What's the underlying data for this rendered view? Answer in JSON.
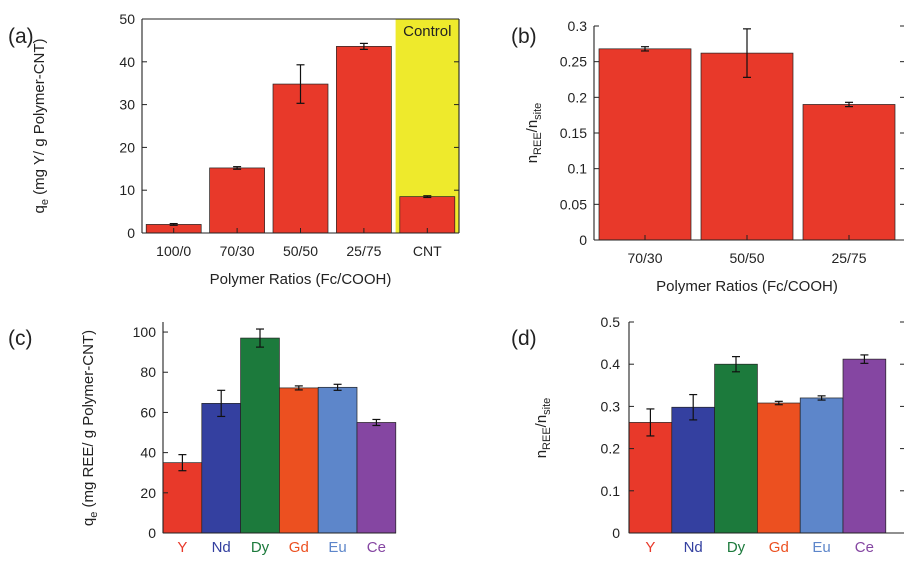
{
  "chart_data": [
    {
      "panel": "(a)",
      "type": "bar",
      "categories": [
        "100/0",
        "70/30",
        "50/50",
        "25/75",
        "CNT"
      ],
      "values": [
        2,
        15.2,
        34.8,
        43.6,
        8.5
      ],
      "errors": [
        0.2,
        0.3,
        4.5,
        0.7,
        0.2
      ],
      "xlabel": "Polymer Ratios (Fc/COOH)",
      "ylabel": {
        "main": "q",
        "sub": "e",
        "rest": " (mg Y/ g Polymer-CNT)"
      },
      "ylim": [
        0,
        50
      ],
      "yticks": [
        "0",
        "10",
        "20",
        "30",
        "40",
        "50"
      ],
      "bar_color": "#e8392a",
      "highlight": {
        "label": "Control",
        "color": "#eeea2c"
      }
    },
    {
      "panel": "(b)",
      "type": "bar",
      "categories": [
        "70/30",
        "50/50",
        "25/75"
      ],
      "values": [
        0.268,
        0.262,
        0.19
      ],
      "errors": [
        0.003,
        0.034,
        0.003
      ],
      "xlabel": "Polymer Ratios (Fc/COOH)",
      "ylabel": {
        "a": "n",
        "a_sub": "REE",
        "b": "/n",
        "b_sub": "site"
      },
      "ylim": [
        0,
        0.3
      ],
      "yticks": [
        "0",
        "0.05",
        "0.1",
        "0.15",
        "0.2",
        "0.25",
        "0.3"
      ],
      "bar_color": "#e8392a"
    },
    {
      "panel": "(c)",
      "type": "bar",
      "categories": [
        "Y",
        "Nd",
        "Dy",
        "Gd",
        "Eu",
        "Ce"
      ],
      "values": [
        35,
        64.5,
        97,
        72.2,
        72.5,
        55
      ],
      "errors": [
        4,
        6.5,
        4.5,
        1,
        1.5,
        1.5
      ],
      "ylabel": {
        "main": "q",
        "sub": "e",
        "rest": " (mg REE/ g Polymer-CNT)"
      },
      "ylim": [
        0,
        105
      ],
      "yticks": [
        "0",
        "20",
        "40",
        "60",
        "80",
        "100"
      ],
      "colors": [
        "#e8392a",
        "#3440a0",
        "#1c7a3c",
        "#ec5020",
        "#5d86ca",
        "#8546a2"
      ]
    },
    {
      "panel": "(d)",
      "type": "bar",
      "categories": [
        "Y",
        "Nd",
        "Dy",
        "Gd",
        "Eu",
        "Ce"
      ],
      "values": [
        0.262,
        0.298,
        0.4,
        0.308,
        0.32,
        0.412
      ],
      "errors": [
        0.032,
        0.03,
        0.018,
        0.004,
        0.005,
        0.01
      ],
      "ylabel": {
        "a": "n",
        "a_sub": "REE",
        "b": "/n",
        "b_sub": "site"
      },
      "ylim": [
        0,
        0.5
      ],
      "yticks": [
        "0",
        "0.1",
        "0.2",
        "0.3",
        "0.4",
        "0.5"
      ],
      "colors": [
        "#e8392a",
        "#3440a0",
        "#1c7a3c",
        "#ec5020",
        "#5d86ca",
        "#8546a2"
      ]
    }
  ]
}
